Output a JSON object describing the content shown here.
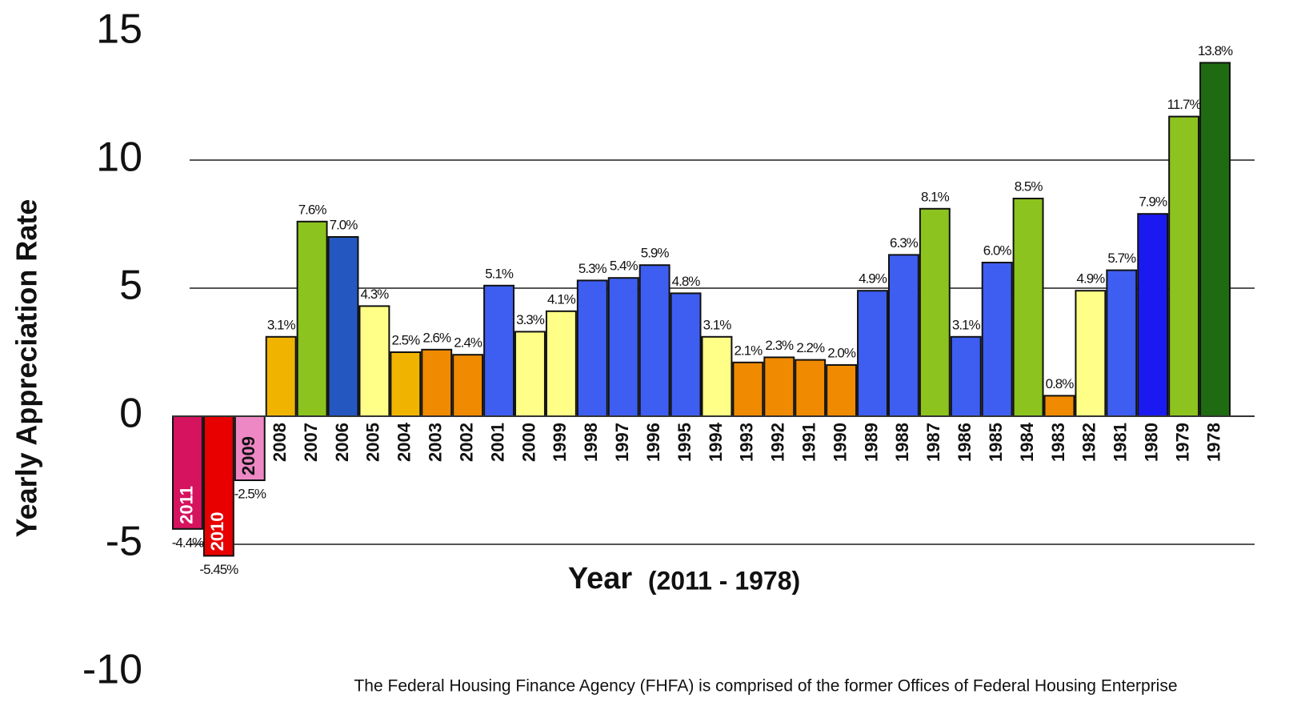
{
  "chart_data": {
    "type": "bar",
    "y_label": "Yearly Appreciation Rate",
    "x_label": "Year",
    "x_sublabel": "(2011 - 1978)",
    "note": "The Federal Housing Finance Agency (FHFA) is comprised of the former Offices of Federal Housing Enterprise",
    "categories": [
      "2011",
      "2010",
      "2009",
      "2008",
      "2007",
      "2006",
      "2005",
      "2004",
      "2003",
      "2002",
      "2001",
      "2000",
      "1999",
      "1998",
      "1997",
      "1996",
      "1995",
      "1994",
      "1993",
      "1992",
      "1991",
      "1990",
      "1989",
      "1988",
      "1987",
      "1986",
      "1985",
      "1984",
      "1983",
      "1982",
      "1981",
      "1980",
      "1979",
      "1978"
    ],
    "values": [
      -4.4,
      -5.45,
      -2.5,
      3.1,
      7.6,
      7.0,
      4.3,
      2.5,
      2.6,
      2.4,
      5.1,
      3.3,
      4.1,
      5.3,
      5.4,
      5.9,
      4.8,
      3.1,
      2.1,
      2.3,
      2.2,
      2.0,
      4.9,
      6.3,
      8.1,
      3.1,
      6.0,
      8.5,
      0.8,
      4.9,
      5.7,
      7.9,
      11.7,
      13.8
    ],
    "value_labels": [
      "-4.4%",
      "-5.45%",
      "-2.5%",
      "3.1%",
      "7.6%",
      "7.0%",
      "4.3%",
      "2.5%",
      "2.6%",
      "2.4%",
      "5.1%",
      "3.3%",
      "4.1%",
      "5.3%",
      "5.4%",
      "5.9%",
      "4.8%",
      "3.1%",
      "2.1%",
      "2.3%",
      "2.2%",
      "2.0%",
      "4.9%",
      "6.3%",
      "8.1%",
      "3.1%",
      "6.0%",
      "8.5%",
      "0.8%",
      "4.9%",
      "5.7%",
      "7.9%",
      "11.7%",
      "13.8%"
    ],
    "colors": [
      "#d6135e",
      "#e80000",
      "#ee88c4",
      "#f0b400",
      "#8cc31e",
      "#2457c0",
      "#ffff88",
      "#f0b400",
      "#f08a00",
      "#f08a00",
      "#3d5ef0",
      "#ffff88",
      "#ffff88",
      "#3d5ef0",
      "#3d5ef0",
      "#3d5ef0",
      "#3d5ef0",
      "#ffff88",
      "#f08a00",
      "#f08a00",
      "#f08a00",
      "#f08a00",
      "#3d5ef0",
      "#3d5ef0",
      "#8cc31e",
      "#3d5ef0",
      "#3d5ef0",
      "#8cc31e",
      "#f08a00",
      "#ffff88",
      "#3d5ef0",
      "#1a1af0",
      "#8cc31e",
      "#1e6b12"
    ],
    "ylim": [
      -10,
      15
    ],
    "yticks": [
      15,
      10,
      5,
      0,
      -5,
      -10
    ],
    "grid": true
  }
}
